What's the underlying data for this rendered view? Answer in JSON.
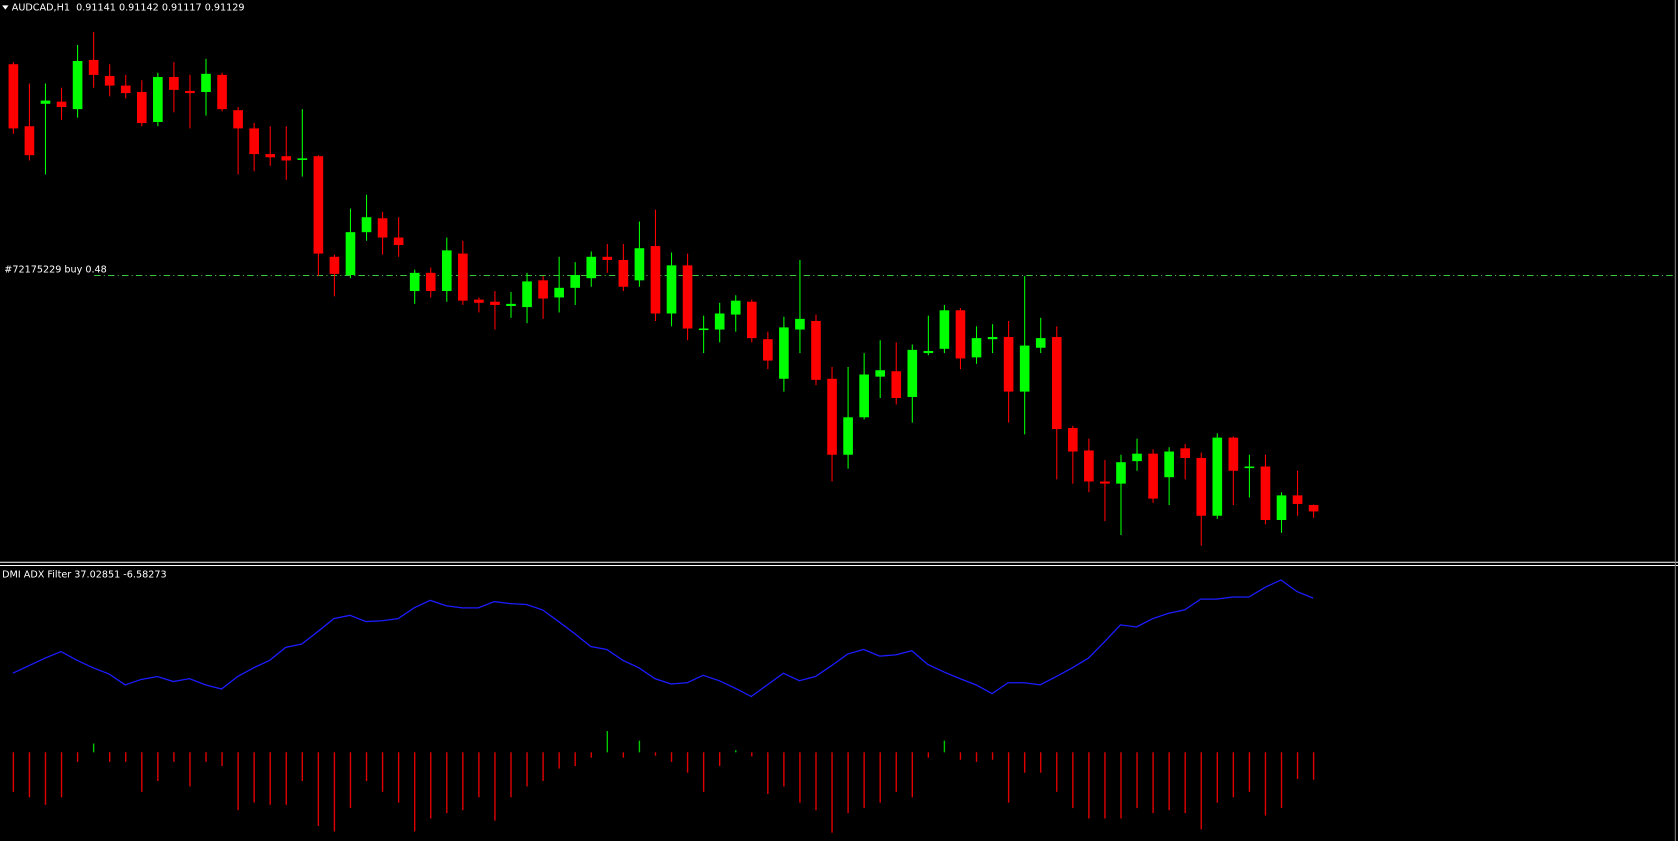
{
  "chart_data": [
    {
      "type": "candlestick",
      "title": "AUDCAD,H1",
      "open": [
        0.91965,
        0.91849,
        0.91891,
        0.91895,
        0.91881,
        0.91973,
        0.91943,
        0.91925,
        0.91913,
        0.91857,
        0.91941,
        0.91915,
        0.91913,
        0.91945,
        0.91879,
        0.91845,
        0.91797,
        0.91793,
        0.91787,
        0.91793,
        0.91605,
        0.91571,
        0.91651,
        0.91677,
        0.91641,
        0.91541,
        0.91575,
        0.91541,
        0.91611,
        0.91525,
        0.91521,
        0.91513,
        0.91511,
        0.91561,
        0.91529,
        0.91547,
        0.91565,
        0.91605,
        0.91599,
        0.91561,
        0.91625,
        0.91499,
        0.91589,
        0.91469,
        0.91469,
        0.91497,
        0.91521,
        0.91451,
        0.91377,
        0.91469,
        0.91485,
        0.91377,
        0.91235,
        0.91305,
        0.91381,
        0.91391,
        0.91343,
        0.91425,
        0.91433,
        0.91505,
        0.91417,
        0.91451,
        0.91455,
        0.91353,
        0.91435,
        0.91455,
        0.91285,
        0.91243,
        0.91185,
        0.91181,
        0.91223,
        0.91237,
        0.91193,
        0.91247,
        0.91229,
        0.91121,
        0.91267,
        0.91211,
        0.91213,
        0.91113,
        0.91159,
        0.91141
      ],
      "high": [
        0.91969,
        0.91929,
        0.91929,
        0.91921,
        0.92001,
        0.92025,
        0.91965,
        0.91945,
        0.91935,
        0.91949,
        0.91969,
        0.91945,
        0.91975,
        0.91949,
        0.91885,
        0.91855,
        0.91849,
        0.91849,
        0.91881,
        0.91795,
        0.91609,
        0.91695,
        0.91721,
        0.91689,
        0.91679,
        0.91581,
        0.91585,
        0.91641,
        0.91635,
        0.91529,
        0.91541,
        0.91539,
        0.91575,
        0.91569,
        0.91605,
        0.91595,
        0.91615,
        0.91629,
        0.91629,
        0.91671,
        0.91693,
        0.91613,
        0.91611,
        0.91495,
        0.91519,
        0.91533,
        0.91525,
        0.91465,
        0.91493,
        0.91599,
        0.91497,
        0.91399,
        0.91399,
        0.91425,
        0.91449,
        0.91445,
        0.91441,
        0.91495,
        0.91515,
        0.91509,
        0.91475,
        0.91479,
        0.91485,
        0.91569,
        0.91491,
        0.91475,
        0.91289,
        0.91265,
        0.91225,
        0.91235,
        0.91265,
        0.91245,
        0.91249,
        0.91255,
        0.91239,
        0.91275,
        0.91269,
        0.91235,
        0.91235,
        0.91165,
        0.91205,
        0.91142
      ],
      "low": [
        0.91835,
        0.91785,
        0.91759,
        0.91861,
        0.91865,
        0.91921,
        0.91905,
        0.91901,
        0.91849,
        0.91849,
        0.91875,
        0.91845,
        0.91869,
        0.91877,
        0.91759,
        0.91765,
        0.91775,
        0.91749,
        0.91755,
        0.91569,
        0.91531,
        0.91565,
        0.91635,
        0.91609,
        0.91605,
        0.91517,
        0.91529,
        0.91521,
        0.91515,
        0.91501,
        0.91469,
        0.91491,
        0.91481,
        0.91489,
        0.91501,
        0.91515,
        0.91549,
        0.91575,
        0.91541,
        0.91549,
        0.91485,
        0.91475,
        0.91449,
        0.91425,
        0.91445,
        0.91465,
        0.91445,
        0.91395,
        0.91353,
        0.91425,
        0.91365,
        0.91185,
        0.91209,
        0.91301,
        0.91341,
        0.91329,
        0.91295,
        0.91421,
        0.91425,
        0.91395,
        0.91405,
        0.91425,
        0.91295,
        0.91273,
        0.91425,
        0.91189,
        0.91181,
        0.91165,
        0.91111,
        0.91085,
        0.91205,
        0.91145,
        0.91141,
        0.91189,
        0.91065,
        0.91115,
        0.91141,
        0.91155,
        0.91105,
        0.91089,
        0.91121,
        0.91117
      ],
      "close": [
        0.91845,
        0.91795,
        0.91897,
        0.91885,
        0.91971,
        0.91945,
        0.91925,
        0.91911,
        0.91855,
        0.91941,
        0.91917,
        0.91911,
        0.91947,
        0.91881,
        0.91845,
        0.91797,
        0.91791,
        0.91785,
        0.91789,
        0.91611,
        0.91573,
        0.91651,
        0.91679,
        0.91641,
        0.91627,
        0.91575,
        0.91541,
        0.91617,
        0.91523,
        0.91519,
        0.91515,
        0.91517,
        0.91559,
        0.91527,
        0.91547,
        0.91571,
        0.91605,
        0.91599,
        0.91549,
        0.91621,
        0.91499,
        0.91589,
        0.91471,
        0.91471,
        0.91499,
        0.91523,
        0.91453,
        0.91411,
        0.91473,
        0.91489,
        0.91375,
        0.91235,
        0.91305,
        0.91385,
        0.91393,
        0.91341,
        0.91431,
        0.91429,
        0.91505,
        0.91415,
        0.91453,
        0.91455,
        0.91353,
        0.91439,
        0.91453,
        0.91283,
        0.91241,
        0.91185,
        0.91181,
        0.91221,
        0.91237,
        0.91153,
        0.91241,
        0.91229,
        0.91121,
        0.91267,
        0.91205,
        0.91213,
        0.91113,
        0.91159,
        0.91143,
        0.91129
      ],
      "up_color": "#00ff00",
      "down_color": "#ff0000",
      "ylim": [
        0.91035,
        0.92085
      ],
      "order_line": {
        "label": "#72175229 buy 0.48",
        "value": 0.91571,
        "color": "#3cc83c"
      }
    },
    {
      "type": "indicator",
      "title": "DMI ADX Filter",
      "line": {
        "color": "#1c1cff",
        "values": [
          19.0,
          20.8,
          22.6,
          24.2,
          22.1,
          20.3,
          18.8,
          16.2,
          17.5,
          18.2,
          17.0,
          17.7,
          16.2,
          15.2,
          18.2,
          20.3,
          22.1,
          25.2,
          26.0,
          29.0,
          32.1,
          32.9,
          31.4,
          31.6,
          32.1,
          34.7,
          36.5,
          35.2,
          34.7,
          34.7,
          36.2,
          35.7,
          35.5,
          34.2,
          31.4,
          28.5,
          25.4,
          24.7,
          22.1,
          20.3,
          17.7,
          16.4,
          16.7,
          18.5,
          17.2,
          15.4,
          13.4,
          16.2,
          19.0,
          17.2,
          18.2,
          20.8,
          23.6,
          24.7,
          23.1,
          23.4,
          24.4,
          21.1,
          19.3,
          17.7,
          16.2,
          14.1,
          16.7,
          16.7,
          16.2,
          18.2,
          20.3,
          22.6,
          26.5,
          30.6,
          30.1,
          32.1,
          33.4,
          34.2,
          36.8,
          36.8,
          37.3,
          37.3,
          39.6,
          41.4,
          38.6,
          37.02851
        ]
      },
      "histogram": {
        "up_color": "#00c800",
        "down_color": "#e00000",
        "values": [
          -9.5,
          -10.8,
          -12.6,
          -10.8,
          -2.3,
          2.1,
          -2.3,
          -2.3,
          -9.5,
          -6.9,
          -2.3,
          -8.2,
          -2.3,
          -3.3,
          -13.9,
          -12.1,
          -12.6,
          -12.6,
          -6.9,
          -17.7,
          -19.0,
          -13.4,
          -6.9,
          -9.5,
          -12.1,
          -19.0,
          -15.9,
          -14.6,
          -13.9,
          -10.8,
          -16.4,
          -10.8,
          -8.2,
          -6.9,
          -3.9,
          -3.3,
          -1.3,
          5.1,
          -1.3,
          2.8,
          -0.8,
          -2.3,
          -4.9,
          -9.5,
          -3.3,
          0.5,
          -1.0,
          -10.0,
          -8.2,
          -12.1,
          -13.9,
          -19.3,
          -14.6,
          -13.4,
          -12.1,
          -9.5,
          -10.8,
          -1.3,
          2.8,
          -1.8,
          -2.3,
          -1.8,
          -12.1,
          -4.9,
          -4.9,
          -9.5,
          -13.4,
          -15.9,
          -15.9,
          -15.9,
          -13.4,
          -14.6,
          -13.9,
          -14.6,
          -18.5,
          -12.1,
          -10.8,
          -9.5,
          -15.2,
          -13.4,
          -6.4,
          -6.58273
        ]
      },
      "ylim": [
        -21.3,
        45
      ]
    }
  ]
}
